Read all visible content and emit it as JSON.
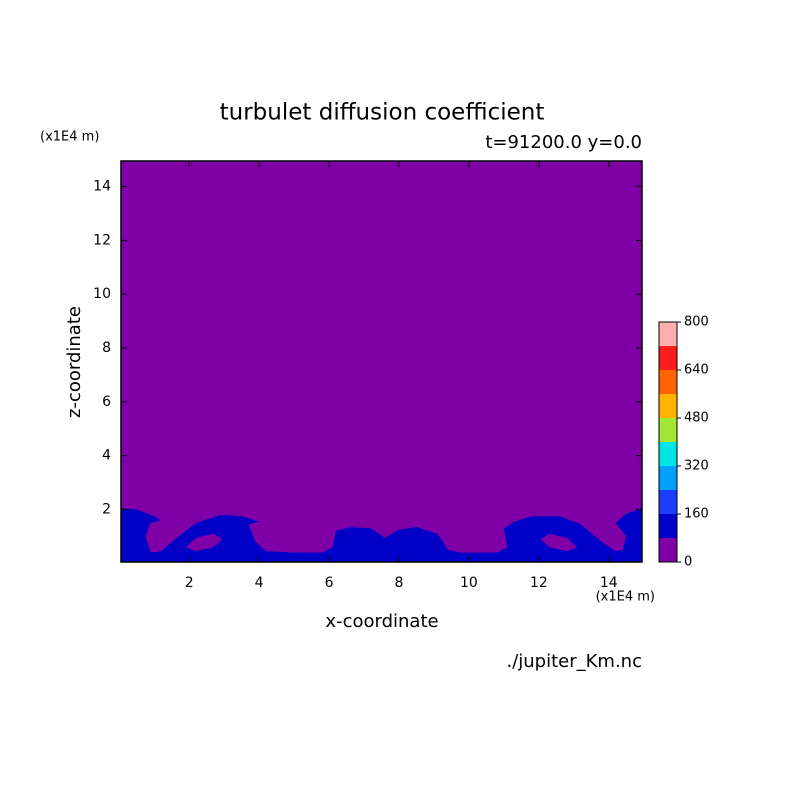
{
  "chart_data": {
    "type": "contour",
    "title": "turbulet diffusion coefficient",
    "subtitle": "t=91200.0 y=0.0",
    "xlabel": "x-coordinate",
    "ylabel": "z-coordinate",
    "xunit": "(x1E4 m)",
    "yunit": "(x1E4 m)",
    "source": "./jupiter_Km.nc",
    "xlim": [
      0.05,
      14.95
    ],
    "ylim": [
      0.05,
      14.95
    ],
    "xticks": [
      2,
      4,
      6,
      8,
      10,
      12,
      14
    ],
    "yticks": [
      2,
      4,
      6,
      8,
      10,
      12,
      14
    ],
    "levels": [
      0,
      80,
      160,
      240,
      320,
      400,
      480,
      560,
      640,
      720,
      800
    ],
    "colors": [
      "#7f00a7",
      "#0000c8",
      "#1e3cff",
      "#00a0ff",
      "#00e6e6",
      "#a0e632",
      "#ffb400",
      "#ff6400",
      "#ff1e1e",
      "#ffafaf"
    ],
    "colorbar_ticks": [
      0,
      160,
      320,
      480,
      640,
      800
    ],
    "regions": [
      {
        "color": "#0000c8",
        "x": [
          0.05,
          0.05,
          0.5,
          1.0,
          1.2,
          0.9,
          0.75,
          0.9,
          1.2,
          1.6,
          2.2,
          2.9,
          3.5,
          4.0,
          3.7,
          3.9,
          4.2,
          5.0,
          5.8,
          6.1,
          6.2,
          6.6,
          7.2,
          7.6,
          8.0,
          8.5,
          9.1,
          9.4,
          9.8,
          10.8,
          11.1,
          11.0,
          11.3,
          11.8,
          12.6,
          13.2,
          13.8,
          14.2,
          14.4,
          14.5,
          14.2,
          14.5,
          14.95,
          14.95
        ],
        "y": [
          0.05,
          2.05,
          2.0,
          1.75,
          1.6,
          1.5,
          1.0,
          0.4,
          0.45,
          0.9,
          1.5,
          1.8,
          1.75,
          1.55,
          1.45,
          0.8,
          0.45,
          0.4,
          0.4,
          0.6,
          1.2,
          1.35,
          1.3,
          0.95,
          1.25,
          1.35,
          1.1,
          0.5,
          0.4,
          0.4,
          0.6,
          1.3,
          1.55,
          1.75,
          1.75,
          1.45,
          0.8,
          0.45,
          0.5,
          1.0,
          1.5,
          1.85,
          2.05,
          0.05
        ]
      },
      {
        "color": "#7f00a7",
        "x": [
          1.9,
          2.2,
          2.7,
          2.95,
          2.7,
          2.2
        ],
        "y": [
          0.6,
          0.95,
          1.1,
          0.9,
          0.6,
          0.45
        ]
      },
      {
        "color": "#7f00a7",
        "x": [
          13.1,
          12.8,
          12.3,
          12.05,
          12.3,
          12.8
        ],
        "y": [
          0.6,
          0.95,
          1.1,
          0.9,
          0.6,
          0.45
        ]
      }
    ]
  }
}
